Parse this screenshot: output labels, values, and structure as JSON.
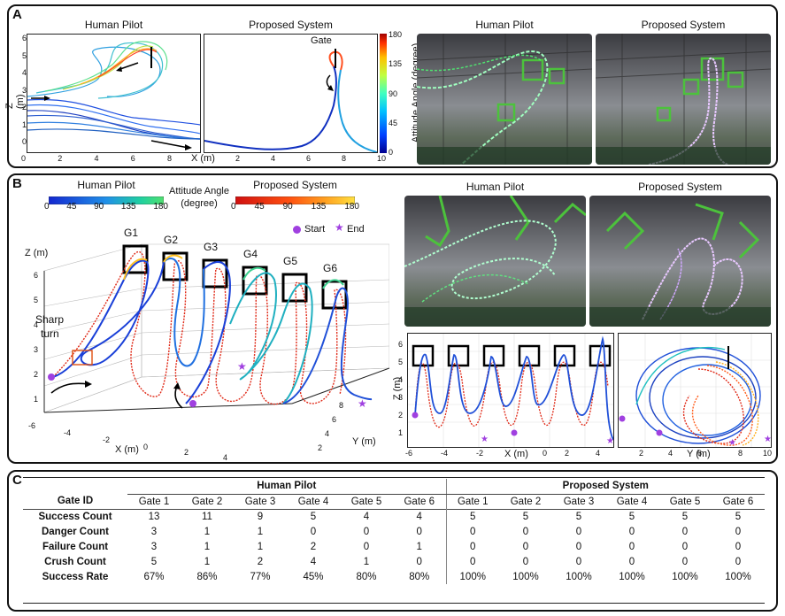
{
  "panel_a": {
    "label": "A",
    "left_plot": {
      "title": "Human Pilot",
      "ylabel": "Z (m)",
      "yticks": [
        "0",
        "1",
        "2",
        "3",
        "4",
        "5",
        "6"
      ],
      "xticks": [
        "0",
        "2",
        "4",
        "6",
        "8"
      ]
    },
    "right_plot": {
      "title": "Proposed System",
      "xlabel": "X (m)",
      "xticks": [
        "2",
        "4",
        "6",
        "8",
        "10"
      ],
      "gate_label": "Gate"
    },
    "colorbar": {
      "ticks": [
        "180",
        "135",
        "90",
        "45",
        "0"
      ],
      "label": "Attitude Angle (degree)"
    },
    "photo_left_title": "Human Pilot",
    "photo_right_title": "Proposed System"
  },
  "panel_b": {
    "label": "B",
    "legend_human": "Human Pilot",
    "legend_proposed": "Proposed System",
    "legend_ticks": [
      "0",
      "45",
      "90",
      "135",
      "180"
    ],
    "legend_center_line1": "Attitude Angle",
    "legend_center_line2": "(degree)",
    "start_label": "Start",
    "end_label": "End",
    "zlabel": "Z (m)",
    "xlabel": "X (m)",
    "ylabel": "Y (m)",
    "gates": [
      "G1",
      "G2",
      "G3",
      "G4",
      "G5",
      "G6"
    ],
    "sharp_turn_line1": "Sharp",
    "sharp_turn_line2": "turn",
    "zticks": [
      "1",
      "2",
      "3",
      "4",
      "5",
      "6"
    ],
    "xticks": [
      "-6",
      "-4",
      "-2",
      "0",
      "2",
      "4"
    ],
    "yticks": [
      "2",
      "4",
      "6",
      "8"
    ],
    "photo_left_title": "Human Pilot",
    "photo_right_title": "Proposed System",
    "xz_plot": {
      "ylabel": "Z (m)",
      "yticks": [
        "1",
        "2",
        "3",
        "4",
        "5",
        "6"
      ],
      "xticks": [
        "-6",
        "-4",
        "-2",
        "0",
        "2",
        "4"
      ],
      "xlabel": "X (m)"
    },
    "yz_plot": {
      "xticks": [
        "2",
        "4",
        "6",
        "8",
        "10"
      ],
      "xlabel": "Y (m)"
    }
  },
  "panel_c": {
    "label": "C",
    "gate_id_header": "Gate ID",
    "group_human": "Human Pilot",
    "group_proposed": "Proposed System",
    "gates": [
      "Gate 1",
      "Gate 2",
      "Gate 3",
      "Gate 4",
      "Gate 5",
      "Gate 6"
    ],
    "rows": [
      {
        "label": "Success Count",
        "human": [
          "13",
          "11",
          "9",
          "5",
          "4",
          "4"
        ],
        "proposed": [
          "5",
          "5",
          "5",
          "5",
          "5",
          "5"
        ]
      },
      {
        "label": "Danger Count",
        "human": [
          "3",
          "1",
          "1",
          "0",
          "0",
          "0"
        ],
        "proposed": [
          "0",
          "0",
          "0",
          "0",
          "0",
          "0"
        ]
      },
      {
        "label": "Failure Count",
        "human": [
          "3",
          "1",
          "1",
          "2",
          "0",
          "1"
        ],
        "proposed": [
          "0",
          "0",
          "0",
          "0",
          "0",
          "0"
        ]
      },
      {
        "label": "Crush Count",
        "human": [
          "5",
          "1",
          "2",
          "4",
          "1",
          "0"
        ],
        "proposed": [
          "0",
          "0",
          "0",
          "0",
          "0",
          "0"
        ]
      },
      {
        "label": "Success Rate",
        "human": [
          "67%",
          "86%",
          "77%",
          "45%",
          "80%",
          "80%"
        ],
        "proposed": [
          "100%",
          "100%",
          "100%",
          "100%",
          "100%",
          "100%"
        ]
      }
    ]
  }
}
